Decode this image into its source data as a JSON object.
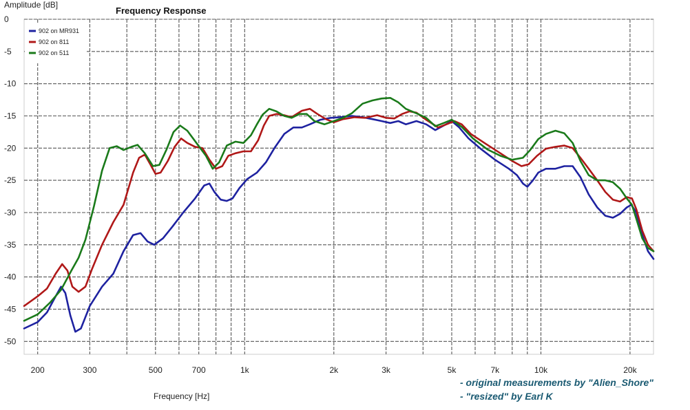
{
  "chart_data": {
    "type": "line",
    "title": "Frequency Response",
    "xlabel": "Frequency [Hz]",
    "ylabel": "Amplitude [dB]",
    "xscale": "log",
    "xlim": [
      180,
      24000
    ],
    "ylim": [
      -52,
      0
    ],
    "grid": true,
    "legend_position": "top-left",
    "x_ticks": [
      {
        "value": 200,
        "label": "200"
      },
      {
        "value": 300,
        "label": "300"
      },
      {
        "value": 500,
        "label": "500"
      },
      {
        "value": 700,
        "label": "700"
      },
      {
        "value": 1000,
        "label": "1k"
      },
      {
        "value": 2000,
        "label": "2k"
      },
      {
        "value": 3000,
        "label": "3k"
      },
      {
        "value": 5000,
        "label": "5k"
      },
      {
        "value": 7000,
        "label": "7k"
      },
      {
        "value": 10000,
        "label": "10k"
      },
      {
        "value": 20000,
        "label": "20k"
      }
    ],
    "y_ticks": [
      {
        "value": 0,
        "label": "0"
      },
      {
        "value": -5,
        "label": "-5"
      },
      {
        "value": -10,
        "label": "-10"
      },
      {
        "value": -15,
        "label": "-15"
      },
      {
        "value": -20,
        "label": "-20"
      },
      {
        "value": -25,
        "label": "-25"
      },
      {
        "value": -30,
        "label": "-30"
      },
      {
        "value": -35,
        "label": "-35"
      },
      {
        "value": -40,
        "label": "-40"
      },
      {
        "value": -45,
        "label": "-45"
      },
      {
        "value": -50,
        "label": "-50"
      }
    ],
    "series": [
      {
        "name": "902 on MR931",
        "color": "#1e22a0",
        "points": [
          [
            180,
            -48
          ],
          [
            200,
            -47
          ],
          [
            215,
            -45.5
          ],
          [
            230,
            -43
          ],
          [
            240,
            -41.5
          ],
          [
            248,
            -42.5
          ],
          [
            258,
            -46
          ],
          [
            268,
            -48.5
          ],
          [
            280,
            -48
          ],
          [
            300,
            -44.5
          ],
          [
            330,
            -41.5
          ],
          [
            360,
            -39.5
          ],
          [
            390,
            -36
          ],
          [
            420,
            -33.5
          ],
          [
            445,
            -33.2
          ],
          [
            470,
            -34.5
          ],
          [
            495,
            -35
          ],
          [
            530,
            -34
          ],
          [
            570,
            -32.2
          ],
          [
            620,
            -30
          ],
          [
            680,
            -27.8
          ],
          [
            730,
            -25.8
          ],
          [
            760,
            -25.5
          ],
          [
            790,
            -26.8
          ],
          [
            830,
            -28
          ],
          [
            870,
            -28.2
          ],
          [
            910,
            -27.8
          ],
          [
            960,
            -26.2
          ],
          [
            1020,
            -24.8
          ],
          [
            1100,
            -23.8
          ],
          [
            1180,
            -22.2
          ],
          [
            1260,
            -20
          ],
          [
            1360,
            -17.8
          ],
          [
            1460,
            -16.8
          ],
          [
            1560,
            -16.8
          ],
          [
            1660,
            -16.3
          ],
          [
            1800,
            -15.6
          ],
          [
            1950,
            -15.3
          ],
          [
            2100,
            -15.2
          ],
          [
            2300,
            -15
          ],
          [
            2500,
            -15.2
          ],
          [
            2700,
            -15.5
          ],
          [
            2900,
            -15.8
          ],
          [
            3100,
            -16.1
          ],
          [
            3300,
            -15.8
          ],
          [
            3500,
            -16.3
          ],
          [
            3800,
            -15.8
          ],
          [
            4100,
            -16.3
          ],
          [
            4400,
            -17.2
          ],
          [
            4700,
            -16.5
          ],
          [
            5000,
            -15.8
          ],
          [
            5300,
            -16.8
          ],
          [
            5700,
            -18.5
          ],
          [
            6300,
            -20.2
          ],
          [
            7000,
            -21.8
          ],
          [
            7800,
            -23.2
          ],
          [
            8300,
            -24.2
          ],
          [
            8700,
            -25.5
          ],
          [
            9000,
            -26
          ],
          [
            9400,
            -25
          ],
          [
            9800,
            -23.8
          ],
          [
            10400,
            -23.2
          ],
          [
            11200,
            -23.2
          ],
          [
            12000,
            -22.8
          ],
          [
            12800,
            -22.8
          ],
          [
            13600,
            -24.5
          ],
          [
            14500,
            -27.2
          ],
          [
            15500,
            -29.2
          ],
          [
            16500,
            -30.5
          ],
          [
            17500,
            -30.8
          ],
          [
            18500,
            -30.2
          ],
          [
            19500,
            -29.2
          ],
          [
            20200,
            -28.8
          ],
          [
            21000,
            -30
          ],
          [
            22000,
            -33.5
          ],
          [
            23000,
            -36
          ],
          [
            24000,
            -37.2
          ]
        ]
      },
      {
        "name": "902 on 811",
        "color": "#b01818",
        "points": [
          [
            180,
            -44.5
          ],
          [
            200,
            -43
          ],
          [
            215,
            -41.8
          ],
          [
            230,
            -39.5
          ],
          [
            242,
            -38
          ],
          [
            252,
            -39
          ],
          [
            262,
            -41.5
          ],
          [
            275,
            -42.3
          ],
          [
            290,
            -41.5
          ],
          [
            305,
            -38.8
          ],
          [
            330,
            -35
          ],
          [
            360,
            -31.5
          ],
          [
            390,
            -28.8
          ],
          [
            420,
            -23.8
          ],
          [
            440,
            -21.5
          ],
          [
            460,
            -21
          ],
          [
            480,
            -22.5
          ],
          [
            500,
            -24
          ],
          [
            520,
            -23.8
          ],
          [
            550,
            -22
          ],
          [
            580,
            -19.8
          ],
          [
            610,
            -18.5
          ],
          [
            640,
            -19.2
          ],
          [
            680,
            -19.8
          ],
          [
            720,
            -20
          ],
          [
            760,
            -21.8
          ],
          [
            800,
            -23.2
          ],
          [
            840,
            -22.8
          ],
          [
            880,
            -21.2
          ],
          [
            930,
            -20.8
          ],
          [
            990,
            -20.5
          ],
          [
            1050,
            -20.5
          ],
          [
            1110,
            -18.8
          ],
          [
            1160,
            -16.5
          ],
          [
            1210,
            -15
          ],
          [
            1280,
            -14.7
          ],
          [
            1360,
            -14.9
          ],
          [
            1440,
            -15.2
          ],
          [
            1560,
            -14.2
          ],
          [
            1660,
            -13.9
          ],
          [
            1760,
            -14.7
          ],
          [
            1880,
            -15.5
          ],
          [
            2000,
            -16
          ],
          [
            2150,
            -15.5
          ],
          [
            2350,
            -15.2
          ],
          [
            2550,
            -15.3
          ],
          [
            2800,
            -14.9
          ],
          [
            3000,
            -15.3
          ],
          [
            3200,
            -15.4
          ],
          [
            3400,
            -14.7
          ],
          [
            3600,
            -14.3
          ],
          [
            3800,
            -14.5
          ],
          [
            4100,
            -15.6
          ],
          [
            4500,
            -16.8
          ],
          [
            4800,
            -16.3
          ],
          [
            5100,
            -15.8
          ],
          [
            5400,
            -16.3
          ],
          [
            5800,
            -17.8
          ],
          [
            6500,
            -19.3
          ],
          [
            7300,
            -20.8
          ],
          [
            8000,
            -22
          ],
          [
            8600,
            -22.8
          ],
          [
            9100,
            -22.5
          ],
          [
            9700,
            -21.2
          ],
          [
            10400,
            -20.1
          ],
          [
            11200,
            -19.8
          ],
          [
            12000,
            -19.6
          ],
          [
            12800,
            -20
          ],
          [
            13600,
            -21.5
          ],
          [
            14500,
            -23.2
          ],
          [
            15500,
            -25
          ],
          [
            16500,
            -26.8
          ],
          [
            17500,
            -28
          ],
          [
            18500,
            -28.3
          ],
          [
            19500,
            -27.6
          ],
          [
            20300,
            -27.8
          ],
          [
            21000,
            -29.5
          ],
          [
            22000,
            -32.8
          ],
          [
            23000,
            -35
          ],
          [
            24000,
            -36
          ]
        ]
      },
      {
        "name": "902 on 511",
        "color": "#1a7a1a",
        "points": [
          [
            180,
            -46.8
          ],
          [
            200,
            -45.8
          ],
          [
            220,
            -44
          ],
          [
            240,
            -42
          ],
          [
            260,
            -39
          ],
          [
            275,
            -37
          ],
          [
            290,
            -34.2
          ],
          [
            310,
            -29
          ],
          [
            330,
            -23.5
          ],
          [
            350,
            -20
          ],
          [
            370,
            -19.7
          ],
          [
            390,
            -20.3
          ],
          [
            415,
            -19.8
          ],
          [
            435,
            -19.5
          ],
          [
            460,
            -20.8
          ],
          [
            490,
            -22.8
          ],
          [
            515,
            -22.6
          ],
          [
            545,
            -20.2
          ],
          [
            575,
            -17.5
          ],
          [
            605,
            -16.5
          ],
          [
            640,
            -17.3
          ],
          [
            690,
            -19.3
          ],
          [
            740,
            -21.2
          ],
          [
            780,
            -23.2
          ],
          [
            820,
            -22.2
          ],
          [
            870,
            -19.6
          ],
          [
            930,
            -19
          ],
          [
            990,
            -19.2
          ],
          [
            1050,
            -18
          ],
          [
            1100,
            -16.3
          ],
          [
            1150,
            -14.8
          ],
          [
            1210,
            -13.9
          ],
          [
            1280,
            -14.3
          ],
          [
            1360,
            -15
          ],
          [
            1440,
            -15.3
          ],
          [
            1530,
            -14.7
          ],
          [
            1620,
            -14.7
          ],
          [
            1720,
            -15.8
          ],
          [
            1860,
            -16.3
          ],
          [
            2000,
            -15.8
          ],
          [
            2150,
            -15.3
          ],
          [
            2300,
            -14.6
          ],
          [
            2500,
            -13.1
          ],
          [
            2700,
            -12.6
          ],
          [
            2900,
            -12.3
          ],
          [
            3100,
            -12.2
          ],
          [
            3300,
            -12.9
          ],
          [
            3500,
            -13.9
          ],
          [
            3800,
            -14.6
          ],
          [
            4100,
            -15.3
          ],
          [
            4400,
            -16.6
          ],
          [
            4700,
            -16.1
          ],
          [
            5000,
            -15.6
          ],
          [
            5400,
            -16.7
          ],
          [
            5900,
            -18.5
          ],
          [
            6600,
            -20.2
          ],
          [
            7300,
            -21.2
          ],
          [
            8000,
            -21.8
          ],
          [
            8700,
            -21.5
          ],
          [
            9200,
            -20.3
          ],
          [
            9800,
            -18.6
          ],
          [
            10400,
            -17.8
          ],
          [
            11200,
            -17.3
          ],
          [
            12000,
            -17.7
          ],
          [
            12800,
            -19.2
          ],
          [
            13600,
            -22
          ],
          [
            14500,
            -24.2
          ],
          [
            15500,
            -25
          ],
          [
            16500,
            -25
          ],
          [
            17500,
            -25.3
          ],
          [
            18500,
            -26.3
          ],
          [
            19500,
            -27.8
          ],
          [
            20300,
            -28.8
          ],
          [
            21000,
            -31
          ],
          [
            22000,
            -34
          ],
          [
            23000,
            -35.5
          ],
          [
            24000,
            -36
          ]
        ]
      }
    ]
  },
  "credits": {
    "line1": "- original measurements by \"Alien_Shore\"",
    "line2": "- \"resized\" by Earl K"
  }
}
